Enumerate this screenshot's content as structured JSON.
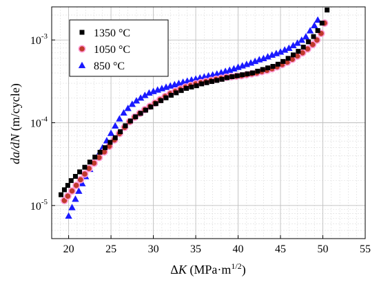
{
  "chart_data": {
    "type": "scatter",
    "xlabel": {
      "delta": "Δ",
      "var": "K",
      "units": " (MPa·m",
      "exp": "1/2",
      "close": ")"
    },
    "ylabel": {
      "var": "da/dN",
      "units": " (m/cycle)"
    },
    "xlim": [
      18,
      55
    ],
    "ylim_log10": [
      -5.4,
      -2.6
    ],
    "x_ticks": [
      20,
      25,
      30,
      35,
      40,
      45,
      50,
      55
    ],
    "y_ticks": [
      {
        "base": "10",
        "exp": "-5",
        "value": 1e-05
      },
      {
        "base": "10",
        "exp": "-4",
        "value": 0.0001
      },
      {
        "base": "10",
        "exp": "-3",
        "value": 0.001
      }
    ],
    "grid": true,
    "scale_y": "log",
    "legend_position": "top-left",
    "series": [
      {
        "name": "1350 °C",
        "marker": "square",
        "color": "#000000",
        "x": [
          19.1,
          19.5,
          19.9,
          20.3,
          20.8,
          21.3,
          21.9,
          22.5,
          23.1,
          23.7,
          24.3,
          24.9,
          25.5,
          26.1,
          26.7,
          27.3,
          27.9,
          28.5,
          29.1,
          29.7,
          30.3,
          30.9,
          31.5,
          32.1,
          32.7,
          33.3,
          33.9,
          34.5,
          35.1,
          35.7,
          36.3,
          36.9,
          37.5,
          38.1,
          38.7,
          39.3,
          39.9,
          40.5,
          41.1,
          41.7,
          42.3,
          42.9,
          43.5,
          44.1,
          44.7,
          45.3,
          45.9,
          46.5,
          47.1,
          47.7,
          48.3,
          48.9,
          49.4,
          49.9,
          50.5
        ],
        "y": [
          1.35e-05,
          1.55e-05,
          1.75e-05,
          2e-05,
          2.25e-05,
          2.55e-05,
          2.9e-05,
          3.35e-05,
          3.85e-05,
          4.4e-05,
          5e-05,
          5.8e-05,
          6.6e-05,
          7.8e-05,
          9.2e-05,
          0.000105,
          0.000118,
          0.00013,
          0.000142,
          0.000155,
          0.00017,
          0.000185,
          0.0002,
          0.000215,
          0.00023,
          0.000245,
          0.00026,
          0.00027,
          0.00028,
          0.000295,
          0.000305,
          0.000315,
          0.000325,
          0.000335,
          0.00035,
          0.00036,
          0.00037,
          0.00038,
          0.00039,
          0.0004,
          0.00042,
          0.00044,
          0.00046,
          0.00048,
          0.00051,
          0.00055,
          0.0006,
          0.00066,
          0.00073,
          0.00082,
          0.00095,
          0.0011,
          0.0013,
          0.0016,
          0.0023
        ]
      },
      {
        "name": "1050 °C",
        "marker": "circle",
        "color": "#c0392b",
        "x": [
          19.5,
          19.9,
          20.4,
          20.9,
          21.4,
          21.9,
          22.4,
          23.0,
          23.6,
          24.2,
          24.8,
          25.4,
          26.0,
          26.6,
          27.2,
          27.8,
          28.4,
          29.0,
          29.6,
          30.2,
          30.8,
          31.4,
          32.0,
          32.6,
          33.2,
          33.8,
          34.4,
          35.0,
          35.6,
          36.2,
          36.8,
          37.4,
          38.0,
          38.6,
          39.2,
          39.8,
          40.4,
          41.0,
          41.6,
          42.2,
          42.8,
          43.4,
          44.0,
          44.6,
          45.2,
          45.8,
          46.4,
          47.0,
          47.6,
          48.2,
          48.8,
          49.3,
          49.8,
          50.2
        ],
        "y": [
          1.15e-05,
          1.3e-05,
          1.5e-05,
          1.75e-05,
          2.05e-05,
          2.4e-05,
          2.8e-05,
          3.25e-05,
          3.8e-05,
          4.45e-05,
          5.2e-05,
          6.2e-05,
          7.4e-05,
          8.8e-05,
          0.000103,
          0.000117,
          0.00013,
          0.000144,
          0.000158,
          0.000173,
          0.00019,
          0.000208,
          0.000225,
          0.00024,
          0.000255,
          0.00027,
          0.000282,
          0.000295,
          0.000305,
          0.000315,
          0.000325,
          0.000335,
          0.000345,
          0.000355,
          0.00036,
          0.000365,
          0.00037,
          0.00038,
          0.00039,
          0.0004,
          0.000415,
          0.00043,
          0.00045,
          0.000475,
          0.000505,
          0.00054,
          0.000585,
          0.00064,
          0.0007,
          0.00078,
          0.00088,
          0.001,
          0.0012,
          0.0016
        ]
      },
      {
        "name": "850 °C",
        "marker": "triangle",
        "color": "#1a1aff",
        "x": [
          20.0,
          20.4,
          20.8,
          21.2,
          21.6,
          22.0,
          22.5,
          23.0,
          23.5,
          24.0,
          24.5,
          25.0,
          25.5,
          26.0,
          26.5,
          27.0,
          27.5,
          28.0,
          28.5,
          29.0,
          29.5,
          30.0,
          30.5,
          31.0,
          31.5,
          32.0,
          32.5,
          33.0,
          33.5,
          34.0,
          34.5,
          35.0,
          35.5,
          36.0,
          36.5,
          37.0,
          37.5,
          38.0,
          38.5,
          39.0,
          39.5,
          40.0,
          40.5,
          41.0,
          41.5,
          42.0,
          42.5,
          43.0,
          43.5,
          44.0,
          44.5,
          45.0,
          45.5,
          46.0,
          46.5,
          47.0,
          47.5,
          48.0,
          48.5,
          49.0,
          49.4
        ],
        "y": [
          7.5e-06,
          9.5e-06,
          1.2e-05,
          1.5e-05,
          1.85e-05,
          2.25e-05,
          2.75e-05,
          3.35e-05,
          4.1e-05,
          5e-05,
          6.1e-05,
          7.5e-05,
          9.2e-05,
          0.000112,
          0.000132,
          0.00015,
          0.000168,
          0.000185,
          0.0002,
          0.000215,
          0.00023,
          0.00024,
          0.00025,
          0.00026,
          0.00027,
          0.00028,
          0.00029,
          0.0003,
          0.00031,
          0.00032,
          0.00033,
          0.00034,
          0.00035,
          0.00036,
          0.00037,
          0.00038,
          0.00039,
          0.000405,
          0.00042,
          0.000435,
          0.00045,
          0.00047,
          0.00049,
          0.00051,
          0.00053,
          0.000555,
          0.00058,
          0.0006,
          0.00063,
          0.00066,
          0.00069,
          0.00072,
          0.00076,
          0.0008,
          0.00086,
          0.00092,
          0.001,
          0.0011,
          0.0013,
          0.0015,
          0.00175
        ]
      }
    ]
  }
}
